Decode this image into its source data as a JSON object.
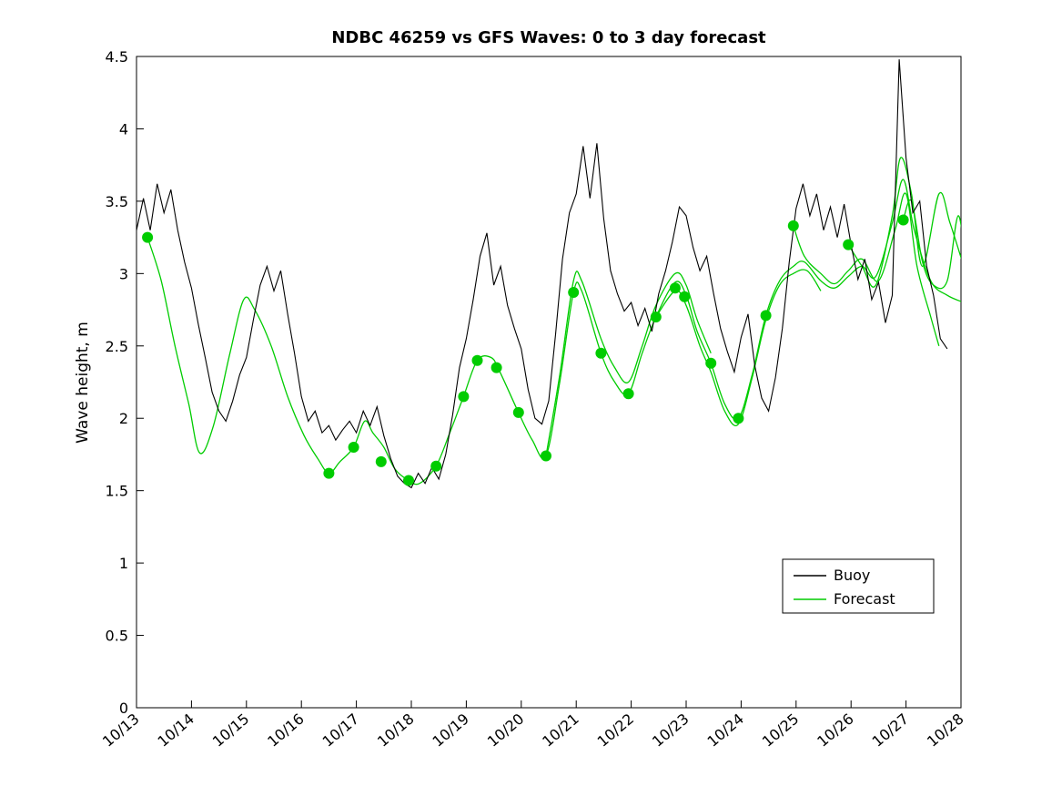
{
  "chart_data": {
    "type": "line",
    "title": "NDBC 46259 vs GFS Waves: 0 to 3 day forecast",
    "xlabel": "",
    "ylabel": "Wave height, m",
    "ylim": [
      0,
      4.5
    ],
    "y_ticks": [
      0,
      0.5,
      1,
      1.5,
      2,
      2.5,
      3,
      3.5,
      4,
      4.5
    ],
    "y_tick_labels": [
      "0",
      "0.5",
      "1",
      "1.5",
      "2",
      "2.5",
      "3",
      "3.5",
      "4",
      "4.5"
    ],
    "x_range_days": [
      0,
      15
    ],
    "x_ticks_days": [
      0,
      1,
      2,
      3,
      4,
      5,
      6,
      7,
      8,
      9,
      10,
      11,
      12,
      13,
      14,
      15
    ],
    "x_tick_labels": [
      "10/13",
      "10/14",
      "10/15",
      "10/16",
      "10/17",
      "10/18",
      "10/19",
      "10/20",
      "10/21",
      "10/22",
      "10/23",
      "10/24",
      "10/25",
      "10/26",
      "10/27",
      "10/28"
    ],
    "grid": false,
    "legend": {
      "position": "right-center",
      "entries": [
        {
          "label": "Buoy",
          "color": "#000000"
        },
        {
          "label": "Forecast",
          "color": "#00cc00"
        }
      ]
    },
    "series": {
      "buoy": {
        "name": "Buoy",
        "color": "#000000",
        "start_day": 0,
        "dt_days": 0.125,
        "values": [
          3.3,
          3.52,
          3.3,
          3.62,
          3.42,
          3.58,
          3.3,
          3.08,
          2.9,
          2.65,
          2.42,
          2.18,
          2.05,
          1.98,
          2.12,
          2.3,
          2.42,
          2.68,
          2.92,
          3.05,
          2.88,
          3.02,
          2.72,
          2.45,
          2.15,
          1.98,
          2.05,
          1.9,
          1.95,
          1.85,
          1.92,
          1.98,
          1.9,
          2.05,
          1.95,
          2.08,
          1.88,
          1.72,
          1.6,
          1.55,
          1.52,
          1.62,
          1.55,
          1.66,
          1.58,
          1.75,
          2.02,
          2.35,
          2.55,
          2.82,
          3.12,
          3.28,
          2.92,
          3.05,
          2.78,
          2.62,
          2.48,
          2.2,
          2.0,
          1.96,
          2.12,
          2.58,
          3.1,
          3.42,
          3.55,
          3.88,
          3.52,
          3.9,
          3.38,
          3.02,
          2.86,
          2.74,
          2.8,
          2.64,
          2.76,
          2.6,
          2.86,
          3.02,
          3.22,
          3.46,
          3.4,
          3.18,
          3.02,
          3.12,
          2.86,
          2.62,
          2.46,
          2.32,
          2.56,
          2.72,
          2.36,
          2.14,
          2.05,
          2.28,
          2.62,
          3.08,
          3.45,
          3.62,
          3.4,
          3.55,
          3.3,
          3.46,
          3.25,
          3.48,
          3.2,
          2.96,
          3.1,
          2.82,
          2.94,
          2.66,
          2.85,
          4.48,
          3.8,
          3.42,
          3.5,
          3.05,
          2.85,
          2.55,
          2.48
        ]
      },
      "forecast": {
        "name": "Forecast",
        "color": "#00cc00",
        "curves": [
          [
            [
              0.2,
              3.25
            ],
            [
              0.45,
              2.95
            ],
            [
              0.7,
              2.5
            ],
            [
              0.95,
              2.1
            ],
            [
              1.15,
              1.76
            ],
            [
              1.4,
              1.95
            ],
            [
              1.7,
              2.45
            ],
            [
              1.95,
              2.82
            ],
            [
              2.15,
              2.75
            ],
            [
              2.45,
              2.5
            ],
            [
              2.75,
              2.15
            ],
            [
              3.05,
              1.88
            ],
            [
              3.3,
              1.72
            ],
            [
              3.5,
              1.62
            ],
            [
              3.7,
              1.7
            ],
            [
              3.95,
              1.8
            ],
            [
              4.15,
              1.98
            ],
            [
              4.3,
              1.9
            ],
            [
              4.5,
              1.8
            ],
            [
              4.7,
              1.65
            ],
            [
              4.95,
              1.57
            ],
            [
              5.15,
              1.55
            ],
            [
              5.45,
              1.67
            ],
            [
              5.7,
              1.9
            ],
            [
              5.95,
              2.15
            ],
            [
              6.2,
              2.4
            ],
            [
              6.45,
              2.42
            ],
            [
              6.6,
              2.33
            ],
            [
              6.95,
              2.04
            ],
            [
              7.2,
              1.85
            ],
            [
              7.45,
              1.74
            ],
            [
              7.7,
              2.25
            ],
            [
              7.95,
              2.87
            ],
            [
              8.1,
              2.88
            ],
            [
              8.45,
              2.45
            ],
            [
              8.7,
              2.25
            ],
            [
              8.95,
              2.17
            ],
            [
              9.2,
              2.45
            ],
            [
              9.45,
              2.7
            ],
            [
              9.8,
              2.94
            ],
            [
              10.0,
              2.85
            ],
            [
              10.2,
              2.6
            ],
            [
              10.45,
              2.38
            ],
            [
              10.7,
              2.1
            ],
            [
              10.95,
              2.0
            ],
            [
              11.2,
              2.3
            ],
            [
              11.45,
              2.71
            ],
            [
              11.7,
              2.95
            ],
            [
              11.95,
              3.05
            ],
            [
              12.15,
              3.08
            ],
            [
              12.45,
              2.95
            ],
            [
              12.7,
              2.9
            ],
            [
              12.95,
              2.98
            ],
            [
              13.2,
              3.05
            ],
            [
              13.45,
              2.98
            ],
            [
              13.75,
              3.35
            ],
            [
              13.95,
              3.65
            ],
            [
              14.15,
              3.3
            ],
            [
              14.45,
              2.95
            ],
            [
              14.75,
              2.85
            ],
            [
              15.05,
              2.8
            ]
          ],
          [
            [
              7.45,
              1.74
            ],
            [
              7.7,
              2.3
            ],
            [
              7.95,
              2.95
            ],
            [
              8.1,
              2.95
            ],
            [
              8.45,
              2.55
            ],
            [
              8.7,
              2.35
            ],
            [
              8.95,
              2.25
            ],
            [
              9.2,
              2.5
            ],
            [
              9.45,
              2.78
            ],
            [
              9.8,
              3.0
            ],
            [
              10.0,
              2.92
            ],
            [
              10.2,
              2.68
            ],
            [
              10.45,
              2.45
            ]
          ],
          [
            [
              9.45,
              2.7
            ],
            [
              9.8,
              2.88
            ],
            [
              10.0,
              2.78
            ],
            [
              10.25,
              2.5
            ],
            [
              10.45,
              2.32
            ],
            [
              10.7,
              2.05
            ],
            [
              10.95,
              1.96
            ],
            [
              11.2,
              2.28
            ],
            [
              11.45,
              2.68
            ],
            [
              11.7,
              2.92
            ],
            [
              11.95,
              3.0
            ],
            [
              12.2,
              3.02
            ],
            [
              12.45,
              2.88
            ]
          ],
          [
            [
              11.95,
              3.33
            ],
            [
              12.15,
              3.12
            ],
            [
              12.45,
              3.0
            ],
            [
              12.7,
              2.93
            ],
            [
              12.95,
              3.02
            ],
            [
              13.2,
              3.1
            ],
            [
              13.5,
              2.95
            ],
            [
              13.8,
              3.3
            ],
            [
              14.0,
              3.55
            ],
            [
              14.2,
              3.05
            ],
            [
              14.45,
              2.7
            ],
            [
              14.6,
              2.5
            ]
          ],
          [
            [
              12.95,
              3.2
            ],
            [
              13.2,
              3.05
            ],
            [
              13.45,
              2.92
            ],
            [
              13.75,
              3.4
            ],
            [
              13.9,
              3.8
            ],
            [
              14.1,
              3.55
            ],
            [
              14.3,
              3.05
            ],
            [
              14.6,
              3.55
            ],
            [
              14.8,
              3.35
            ],
            [
              15.05,
              3.05
            ]
          ],
          [
            [
              13.95,
              3.37
            ],
            [
              14.1,
              3.5
            ],
            [
              14.3,
              3.08
            ],
            [
              14.5,
              2.92
            ],
            [
              14.75,
              2.95
            ],
            [
              14.95,
              3.4
            ],
            [
              15.1,
              3.0
            ]
          ]
        ],
        "dots": [
          [
            0.2,
            3.25
          ],
          [
            3.5,
            1.62
          ],
          [
            3.95,
            1.8
          ],
          [
            4.45,
            1.7
          ],
          [
            4.95,
            1.57
          ],
          [
            5.45,
            1.67
          ],
          [
            5.95,
            2.15
          ],
          [
            6.2,
            2.4
          ],
          [
            6.55,
            2.35
          ],
          [
            6.95,
            2.04
          ],
          [
            7.45,
            1.74
          ],
          [
            7.95,
            2.87
          ],
          [
            8.45,
            2.45
          ],
          [
            8.95,
            2.17
          ],
          [
            9.45,
            2.7
          ],
          [
            9.8,
            2.9
          ],
          [
            9.97,
            2.84
          ],
          [
            10.45,
            2.38
          ],
          [
            10.95,
            2.0
          ],
          [
            11.45,
            2.71
          ],
          [
            11.95,
            3.33
          ],
          [
            12.95,
            3.2
          ],
          [
            13.95,
            3.37
          ]
        ]
      }
    }
  }
}
